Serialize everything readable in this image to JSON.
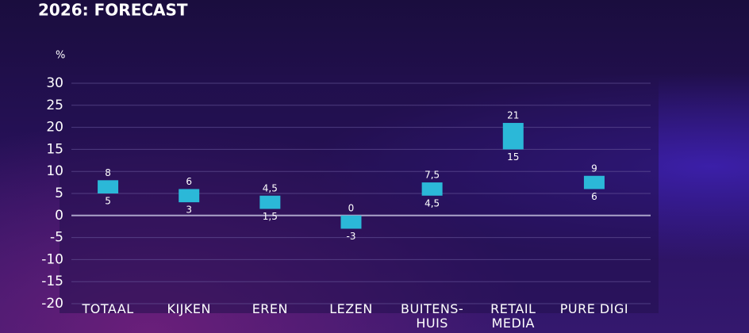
{
  "chart_data": {
    "type": "range-bar",
    "title": "2026: FORECAST",
    "y_unit": "%",
    "categories": [
      "TOTAAL",
      "KIJKEN",
      "EREN",
      "LEZEN",
      "BUITENS-HUIS",
      "RETAIL MEDIA",
      "PURE DIGI"
    ],
    "series": [
      {
        "color": "#2bb8d8",
        "values": [
          5,
          3,
          1.5,
          -3,
          4.5,
          15,
          6
        ],
        "value_labels": [
          "5",
          "3",
          "1,5",
          "-3",
          "4,5",
          "15",
          "6"
        ]
      },
      {
        "color": "#2bb8d8",
        "values": [
          8,
          6,
          4.5,
          0,
          7.5,
          21,
          9
        ],
        "value_labels": [
          "8",
          "6",
          "4,5",
          "0",
          "7,5",
          "21",
          "9"
        ]
      }
    ],
    "ylim": [
      -20,
      30
    ],
    "yticks": [
      -20,
      -15,
      -10,
      -5,
      0,
      5,
      10,
      15,
      20,
      25,
      30
    ],
    "grid": true
  }
}
